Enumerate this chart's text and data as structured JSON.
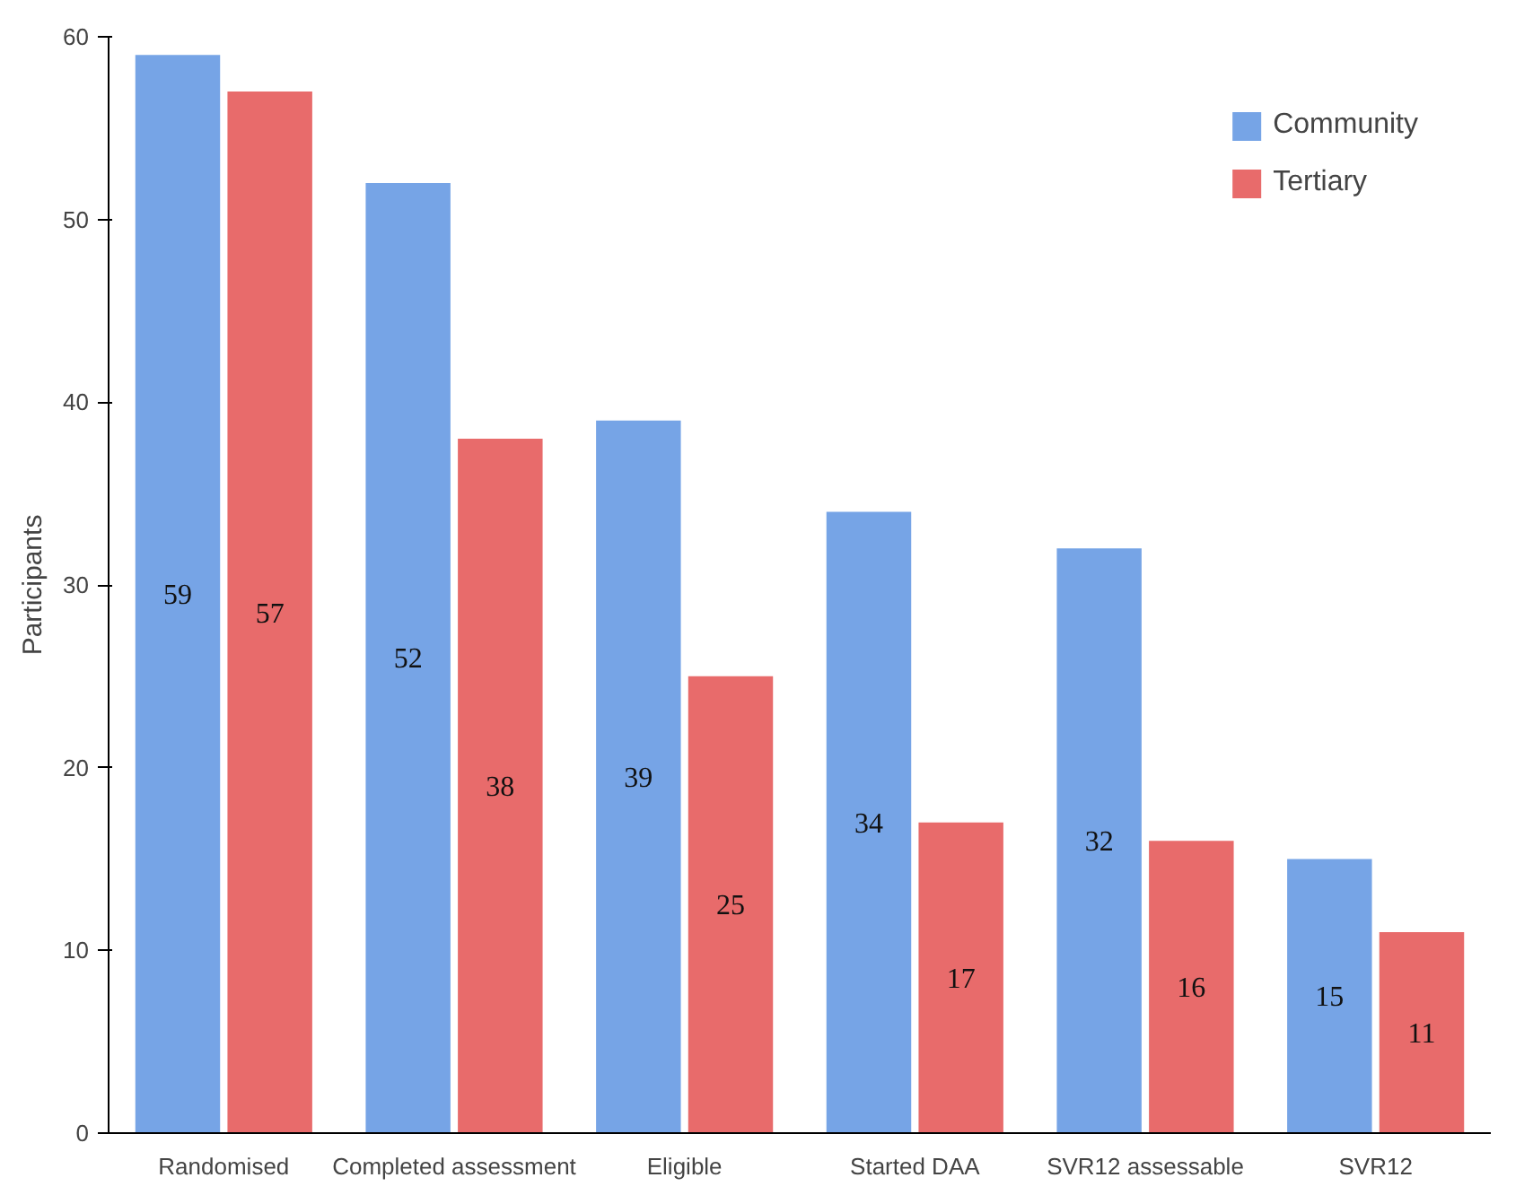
{
  "chart_data": {
    "type": "bar",
    "ylabel": "Participants",
    "categories": [
      "Randomised",
      "Completed assessment",
      "Eligible",
      "Started DAA",
      "SVR12 assessable",
      "SVR12"
    ],
    "series": [
      {
        "name": "Community",
        "color": "#76a4e6",
        "values": [
          59,
          52,
          39,
          34,
          32,
          15
        ]
      },
      {
        "name": "Tertiary",
        "color": "#e86b6b",
        "values": [
          57,
          38,
          25,
          17,
          16,
          11
        ]
      }
    ],
    "ylim": [
      0,
      60
    ],
    "yticks": [
      0,
      10,
      20,
      30,
      40,
      50,
      60
    ],
    "grid": false,
    "legend": "top right",
    "data_labels": true
  }
}
